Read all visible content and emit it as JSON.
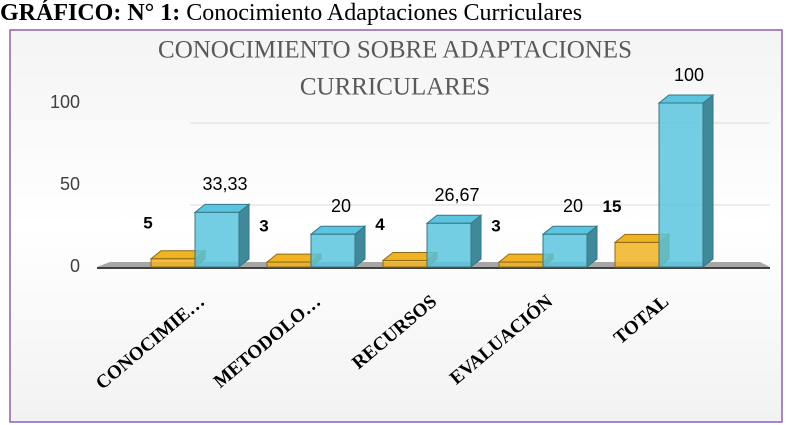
{
  "caption": {
    "label": "GRÁFICO: N° 1:",
    "text": "Conocimiento Adaptaciones Curriculares"
  },
  "chart_data": {
    "type": "bar3d",
    "title": [
      "CONOCIMIENTO SOBRE ADAPTACIONES",
      "CURRICULARES"
    ],
    "categories": [
      "CONOCIMIE…",
      "METODOLO…",
      "RECURSOS",
      "EVALUACIÓN",
      "TOTAL"
    ],
    "series": [
      {
        "color": "#f0b323",
        "values": [
          5,
          3,
          4,
          3,
          15
        ]
      },
      {
        "color": "#5bc4de",
        "values": [
          33.33,
          20,
          26.67,
          20,
          100
        ],
        "value_labels": [
          "33,33",
          "20",
          "26,67",
          "20",
          "100"
        ]
      }
    ],
    "ylim": [
      0,
      110
    ],
    "yticks": [
      0,
      50,
      100
    ],
    "grid": true
  }
}
